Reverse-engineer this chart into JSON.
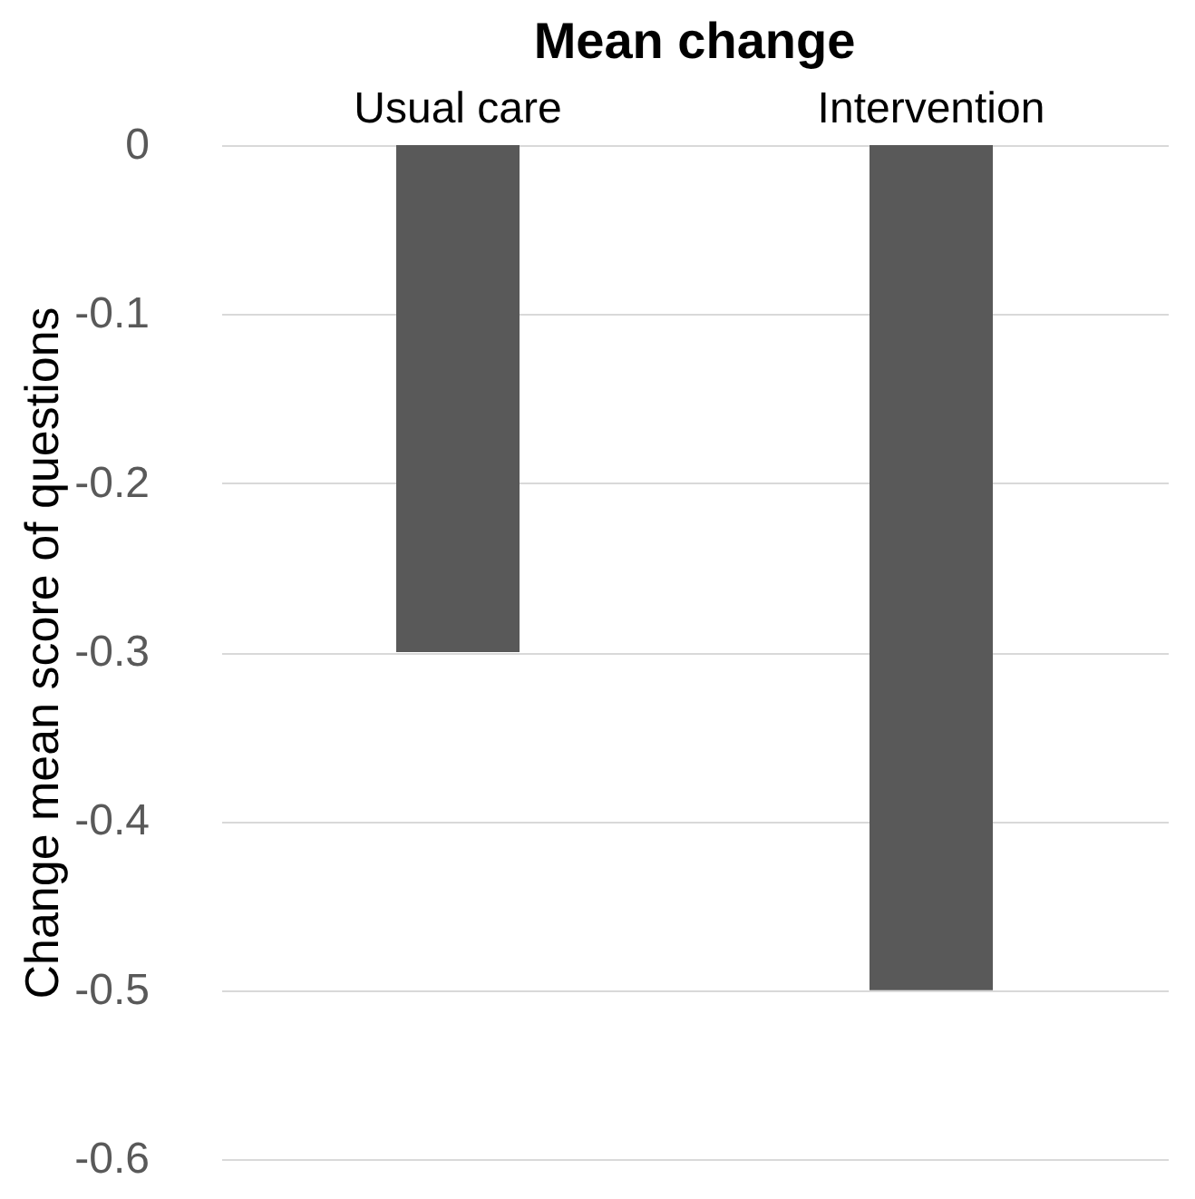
{
  "chart_data": {
    "type": "bar",
    "title": "Mean change",
    "ylabel": "Change mean score of questions",
    "categories": [
      "Usual care",
      "Intervention"
    ],
    "values": [
      -0.3,
      -0.5
    ],
    "color": "#595959",
    "ylim": [
      -0.6,
      0
    ],
    "yticks": [
      0,
      -0.1,
      -0.2,
      -0.3,
      -0.4,
      -0.5,
      -0.6
    ],
    "grid": "y"
  }
}
